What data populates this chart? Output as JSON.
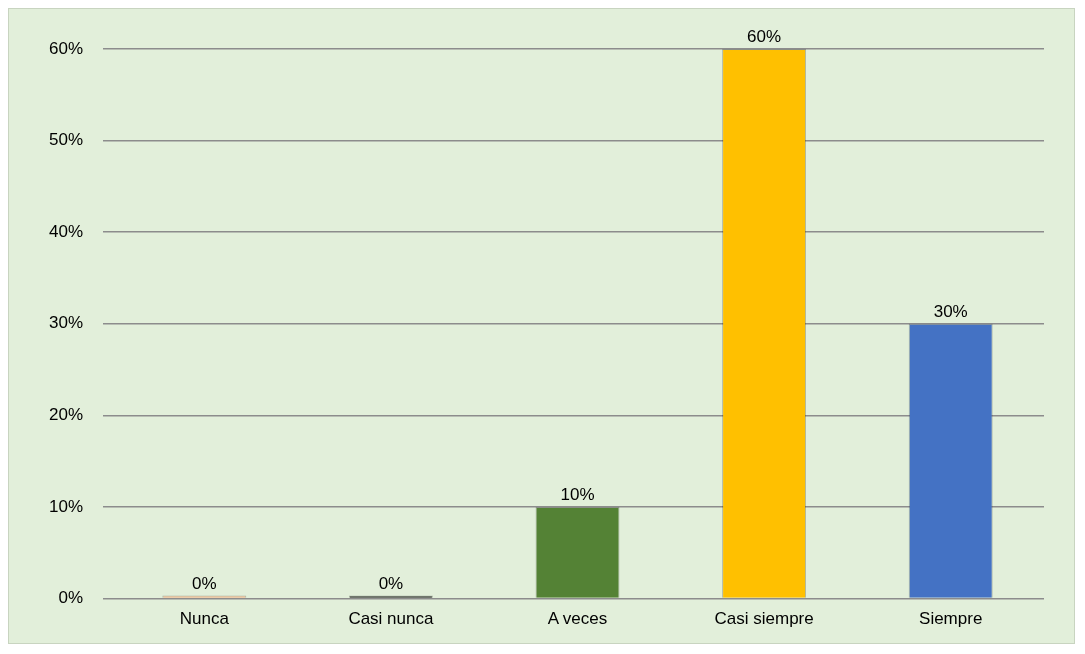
{
  "chart_data": {
    "type": "bar",
    "categories": [
      "Nunca",
      "Casi nunca",
      "A veces",
      "Casi siempre",
      "Siempre"
    ],
    "values": [
      0,
      0,
      10,
      60,
      30
    ],
    "colors": [
      "#f4b183",
      "#1a1a1a",
      "#548235",
      "#ffc000",
      "#4472c4"
    ],
    "value_labels": [
      "0%",
      "0%",
      "10%",
      "60%",
      "30%"
    ],
    "ylim": [
      0,
      60
    ],
    "yticks": [
      {
        "value": 0,
        "label": "0%"
      },
      {
        "value": 10,
        "label": "10%"
      },
      {
        "value": 20,
        "label": "20%"
      },
      {
        "value": 30,
        "label": "30%"
      },
      {
        "value": 40,
        "label": "40%"
      },
      {
        "value": 50,
        "label": "50%"
      },
      {
        "value": 60,
        "label": "60%"
      }
    ],
    "grid": "y",
    "legend": false
  }
}
